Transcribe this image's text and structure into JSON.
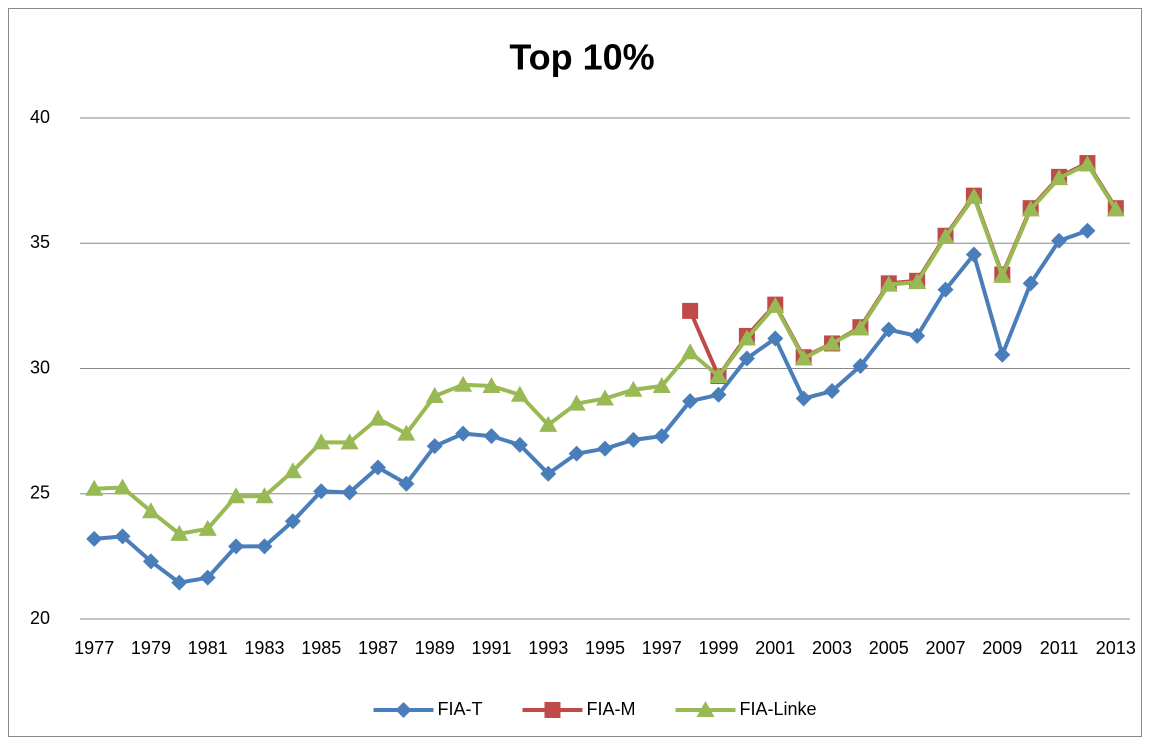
{
  "chart_data": {
    "type": "line",
    "title": "Top 10%",
    "categories": [
      "1977",
      null,
      "1979",
      null,
      "1981",
      null,
      "1983",
      null,
      "1985",
      null,
      "1987",
      null,
      "1989",
      null,
      "1991",
      null,
      "1993",
      null,
      "1995",
      null,
      "1997",
      null,
      "1999",
      null,
      "2001",
      null,
      "2003",
      null,
      "2005",
      null,
      "2007",
      null,
      "2009",
      null,
      "2011",
      null,
      "2013"
    ],
    "series": [
      {
        "name": "FIA-T",
        "color": "#4a7ebb",
        "marker": "diamond",
        "values": [
          23.2,
          23.3,
          22.3,
          21.45,
          21.65,
          22.9,
          22.9,
          23.9,
          25.1,
          25.05,
          26.05,
          25.4,
          26.9,
          27.4,
          27.3,
          26.95,
          25.8,
          26.6,
          26.8,
          27.15,
          27.3,
          28.7,
          28.95,
          30.4,
          31.2,
          28.8,
          29.1,
          30.1,
          31.55,
          31.3,
          33.15,
          34.55,
          30.55,
          33.4,
          35.1,
          35.5,
          null
        ]
      },
      {
        "name": "FIA-M",
        "color": "#be4b48",
        "marker": "square",
        "values": [
          null,
          null,
          null,
          null,
          null,
          null,
          null,
          null,
          null,
          null,
          null,
          null,
          null,
          null,
          null,
          null,
          null,
          null,
          null,
          null,
          null,
          32.3,
          29.7,
          31.3,
          32.55,
          30.45,
          31.0,
          31.65,
          33.4,
          33.5,
          35.3,
          36.9,
          33.75,
          36.4,
          37.65,
          38.2,
          36.4
        ]
      },
      {
        "name": "FIA-Linke",
        "color": "#98b954",
        "marker": "triangle",
        "values": [
          25.2,
          25.25,
          24.3,
          23.4,
          23.6,
          24.9,
          24.9,
          25.9,
          27.05,
          27.05,
          28.0,
          27.4,
          28.9,
          29.35,
          29.3,
          28.95,
          27.75,
          28.6,
          28.8,
          29.15,
          29.3,
          30.65,
          29.7,
          31.2,
          32.5,
          30.4,
          31.0,
          31.6,
          33.35,
          33.45,
          35.25,
          36.85,
          33.7,
          36.35,
          37.6,
          38.15,
          36.35
        ]
      }
    ],
    "ylim": [
      20,
      40
    ],
    "yticks": [
      20,
      25,
      30,
      35,
      40
    ],
    "grid": true,
    "legend": "bottom"
  }
}
